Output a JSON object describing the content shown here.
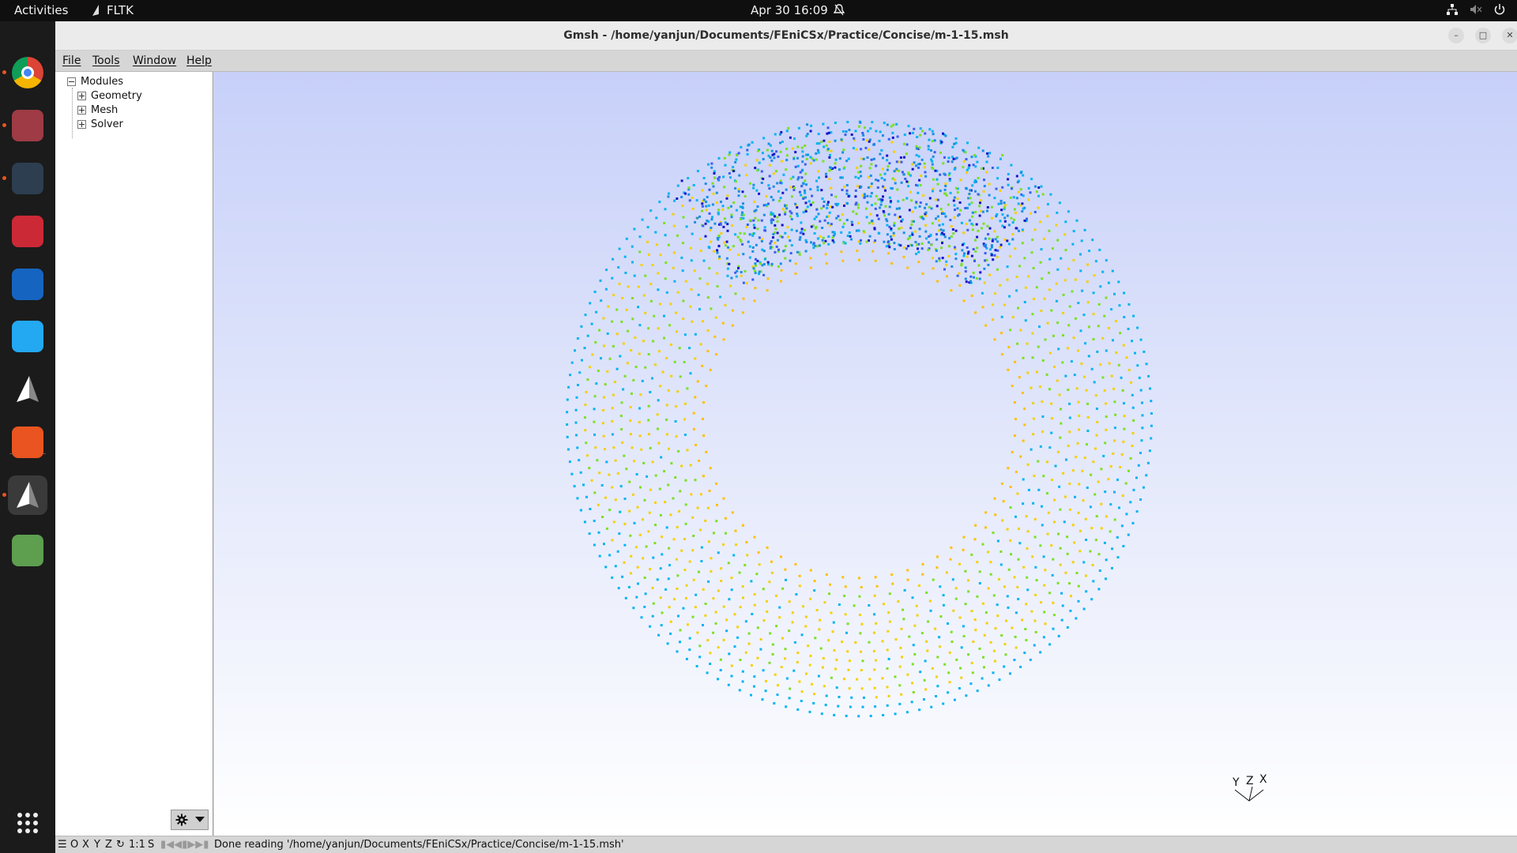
{
  "topbar": {
    "activities": "Activities",
    "app_name": "FLTK",
    "clock": "Apr 30  16:09"
  },
  "dock": {
    "apps": [
      {
        "name": "chrome-icon",
        "color": "#db4437",
        "running": true
      },
      {
        "name": "files-icon",
        "color": "#9e3b44",
        "running": true
      },
      {
        "name": "terminal-icon",
        "color": "#2c3e50",
        "running": true
      },
      {
        "name": "zotero-icon",
        "color": "#cc2936",
        "running": false
      },
      {
        "name": "reader-icon",
        "color": "#1565c0",
        "running": false
      },
      {
        "name": "vscode-icon",
        "color": "#23a8f2",
        "running": false
      },
      {
        "name": "gmsh-icon",
        "color": "#ffffff",
        "running": false
      },
      {
        "name": "app-center-icon",
        "color": "#e95420",
        "running": false
      },
      {
        "name": "gmsh-active-icon",
        "color": "#ffffff",
        "running": true
      },
      {
        "name": "trash-icon",
        "color": "#5d9e4f",
        "running": false
      }
    ]
  },
  "window": {
    "title": "Gmsh - /home/yanjun/Documents/FEniCSx/Practice/Concise/m-1-15.msh"
  },
  "menu": {
    "items": [
      "File",
      "Tools",
      "Window",
      "Help"
    ]
  },
  "tree": {
    "root": "Modules",
    "children": [
      "Geometry",
      "Mesh",
      "Solver"
    ]
  },
  "axes": {
    "labels": [
      "Y",
      "Z",
      "X"
    ]
  },
  "statusbar": {
    "buttons": [
      "O",
      "X",
      "Y",
      "Z",
      "1:1",
      "S"
    ],
    "message": "Done reading '/home/yanjun/Documents/FEniCSx/Practice/Concise/m-1-15.msh'"
  },
  "colors": {
    "point_palette": [
      "#1a8fe0",
      "#00b4f0",
      "#f5d000",
      "#ffc000",
      "#7be020",
      "#3a5ef0",
      "#1515c8"
    ]
  }
}
